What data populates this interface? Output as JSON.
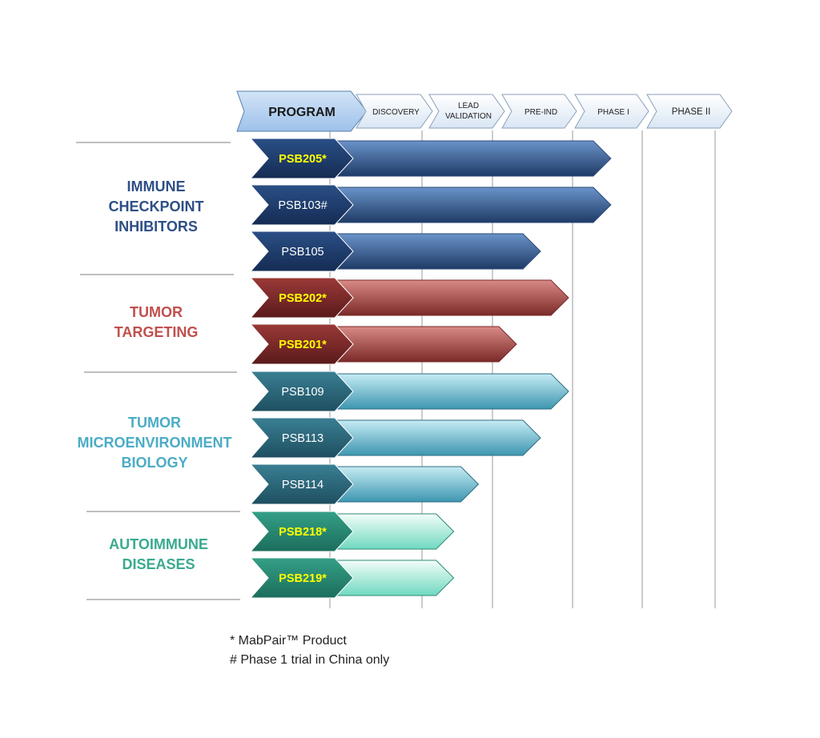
{
  "header": {
    "program_label": "PROGRAM",
    "stages": [
      {
        "lines": [
          "DISCOVERY"
        ]
      },
      {
        "lines": [
          "LEAD",
          "VALIDATION"
        ]
      },
      {
        "lines": [
          "PRE-IND"
        ]
      },
      {
        "lines": [
          "PHASE I"
        ]
      },
      {
        "lines": [
          "PHASE II"
        ]
      }
    ]
  },
  "categories": [
    {
      "lines": [
        "IMMUNE",
        "CHECKPOINT",
        "INHIBITORS"
      ],
      "color": "#2e4f86"
    },
    {
      "lines": [
        "TUMOR",
        "TARGETING"
      ],
      "color": "#c0504d"
    },
    {
      "lines": [
        "TUMOR",
        "MICROENVIRONMENT",
        "BIOLOGY"
      ],
      "color": "#4bacc6"
    },
    {
      "lines": [
        "AUTOIMMUNE",
        "DISEASES"
      ],
      "color": "#3aaa8f"
    }
  ],
  "programs": [
    {
      "name": "PSB205*",
      "category": 0,
      "progress_stage": 3.55,
      "highlight": true
    },
    {
      "name": "PSB103#",
      "category": 0,
      "progress_stage": 3.55,
      "highlight": false
    },
    {
      "name": "PSB105",
      "category": 0,
      "progress_stage": 2.6,
      "highlight": false
    },
    {
      "name": "PSB202*",
      "category": 1,
      "progress_stage": 2.95,
      "highlight": true
    },
    {
      "name": "PSB201*",
      "category": 1,
      "progress_stage": 2.3,
      "highlight": true
    },
    {
      "name": "PSB109",
      "category": 2,
      "progress_stage": 2.95,
      "highlight": false
    },
    {
      "name": "PSB113",
      "category": 2,
      "progress_stage": 2.6,
      "highlight": false
    },
    {
      "name": "PSB114",
      "category": 2,
      "progress_stage": 1.8,
      "highlight": false
    },
    {
      "name": "PSB218*",
      "category": 3,
      "progress_stage": 1.45,
      "highlight": true
    },
    {
      "name": "PSB219*",
      "category": 3,
      "progress_stage": 1.45,
      "highlight": true
    }
  ],
  "colors": {
    "highlight_text": "#ffff00",
    "program_text": "#ffffff",
    "grid": "#9a9a9a"
  },
  "footnotes": {
    "line1": "* MabPair™ Product",
    "line2": "# Phase 1 trial in China only"
  }
}
